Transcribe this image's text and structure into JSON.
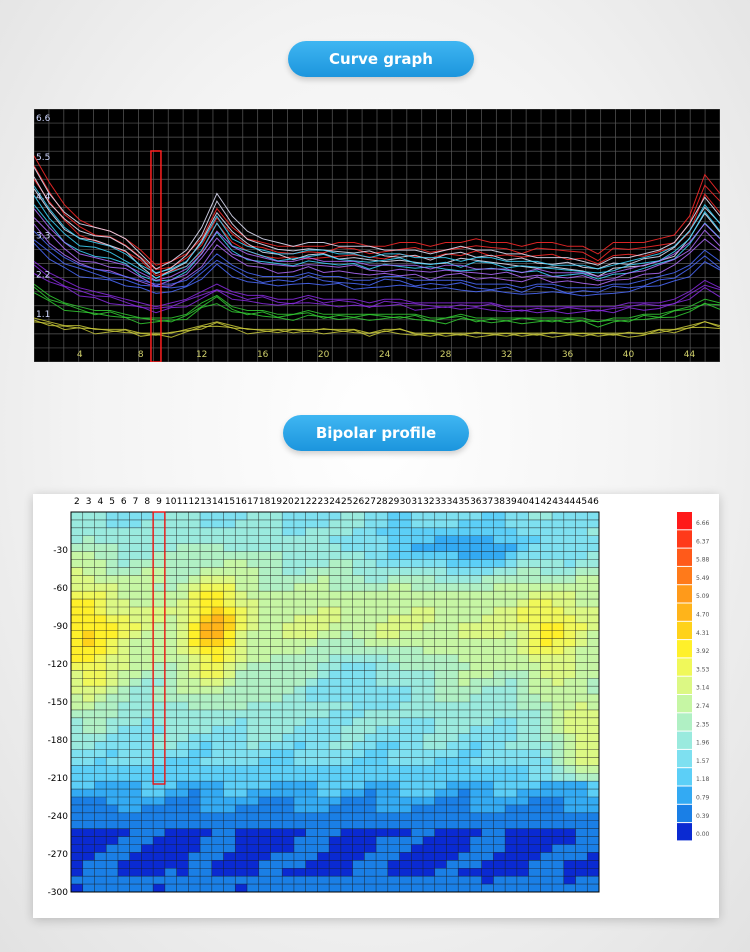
{
  "sections": {
    "curve_title": "Curve graph",
    "profile_title": "Bipolar profile"
  },
  "chart_data": [
    {
      "type": "line",
      "y_ticks": [
        "6.6",
        "5.5",
        "4.4",
        "3.3",
        "2.2",
        "1.1"
      ],
      "x_ticks": [
        "4",
        "8",
        "12",
        "16",
        "20",
        "24",
        "28",
        "32",
        "36",
        "40",
        "44"
      ],
      "xlim": [
        1,
        46
      ],
      "ylim": [
        0,
        6.6
      ],
      "grid": true,
      "highlight_x": 9,
      "x": [
        1,
        2,
        3,
        4,
        5,
        6,
        7,
        8,
        9,
        10,
        11,
        12,
        13,
        14,
        15,
        16,
        17,
        18,
        19,
        20,
        21,
        22,
        23,
        24,
        25,
        26,
        27,
        28,
        29,
        30,
        31,
        32,
        33,
        34,
        35,
        36,
        37,
        38,
        39,
        40,
        41,
        42,
        43,
        44,
        45,
        46
      ],
      "series": [
        {
          "color": "#ff2a2a",
          "values": [
            5.2,
            4.5,
            3.9,
            3.5,
            3.3,
            3.2,
            3.0,
            2.7,
            2.3,
            2.4,
            2.6,
            3.0,
            3.8,
            3.3,
            3.0,
            2.9,
            2.8,
            2.8,
            2.8,
            2.8,
            2.9,
            2.9,
            2.8,
            2.8,
            2.9,
            2.9,
            2.8,
            2.9,
            2.9,
            3.0,
            2.9,
            2.9,
            2.8,
            2.9,
            2.9,
            2.8,
            2.8,
            2.6,
            2.9,
            2.9,
            2.9,
            3.0,
            3.1,
            3.6,
            4.7,
            4.2
          ]
        },
        {
          "color": "#e8e8ff",
          "values": [
            4.9,
            4.2,
            3.7,
            3.4,
            3.3,
            3.2,
            3.0,
            2.6,
            2.2,
            2.4,
            2.7,
            3.3,
            4.2,
            3.6,
            3.2,
            3.0,
            2.9,
            2.8,
            2.9,
            2.9,
            2.8,
            2.8,
            2.8,
            2.7,
            2.7,
            2.7,
            2.6,
            2.7,
            2.8,
            2.7,
            2.7,
            2.6,
            2.6,
            2.5,
            2.5,
            2.5,
            2.4,
            2.3,
            2.5,
            2.5,
            2.6,
            2.7,
            2.9,
            3.4,
            4.1,
            3.6
          ]
        },
        {
          "color": "#3dd6ff",
          "values": [
            4.4,
            3.8,
            3.3,
            3.0,
            2.9,
            2.8,
            2.6,
            2.3,
            2.1,
            2.2,
            2.4,
            2.9,
            3.6,
            3.0,
            2.8,
            2.7,
            2.6,
            2.6,
            2.7,
            2.7,
            2.6,
            2.6,
            2.5,
            2.6,
            2.6,
            2.5,
            2.5,
            2.5,
            2.4,
            2.5,
            2.5,
            2.4,
            2.4,
            2.4,
            2.3,
            2.3,
            2.3,
            2.2,
            2.3,
            2.4,
            2.5,
            2.6,
            2.8,
            3.2,
            3.9,
            3.4
          ]
        },
        {
          "color": "#b06cff",
          "values": [
            3.8,
            3.3,
            2.9,
            2.6,
            2.5,
            2.4,
            2.3,
            2.1,
            1.9,
            2.0,
            2.2,
            2.6,
            3.2,
            2.8,
            2.6,
            2.5,
            2.4,
            2.4,
            2.5,
            2.4,
            2.4,
            2.4,
            2.3,
            2.3,
            2.3,
            2.3,
            2.2,
            2.3,
            2.3,
            2.2,
            2.2,
            2.2,
            2.1,
            2.2,
            2.1,
            2.1,
            2.1,
            2.0,
            2.1,
            2.2,
            2.3,
            2.4,
            2.6,
            2.9,
            3.4,
            3.0
          ]
        },
        {
          "color": "#4b6bff",
          "values": [
            3.2,
            2.8,
            2.5,
            2.3,
            2.2,
            2.1,
            2.0,
            1.9,
            1.8,
            1.8,
            1.9,
            2.2,
            2.6,
            2.3,
            2.1,
            2.0,
            2.0,
            2.0,
            2.1,
            2.0,
            2.0,
            1.9,
            1.9,
            2.0,
            2.0,
            1.9,
            1.9,
            1.9,
            1.9,
            1.8,
            1.8,
            1.8,
            1.7,
            1.8,
            1.8,
            1.7,
            1.7,
            1.7,
            1.8,
            1.8,
            1.9,
            2.0,
            2.1,
            2.3,
            2.7,
            2.4
          ]
        },
        {
          "color": "#8a2be2",
          "values": [
            2.4,
            2.1,
            1.9,
            1.7,
            1.6,
            1.5,
            1.4,
            1.3,
            1.2,
            1.3,
            1.4,
            1.6,
            1.8,
            1.6,
            1.5,
            1.5,
            1.4,
            1.4,
            1.5,
            1.4,
            1.4,
            1.4,
            1.3,
            1.4,
            1.4,
            1.3,
            1.3,
            1.3,
            1.3,
            1.3,
            1.3,
            1.2,
            1.2,
            1.2,
            1.2,
            1.2,
            1.2,
            1.2,
            1.2,
            1.3,
            1.3,
            1.3,
            1.4,
            1.6,
            1.9,
            1.7
          ]
        },
        {
          "color": "#33cc33",
          "values": [
            1.8,
            1.5,
            1.3,
            1.2,
            1.1,
            1.1,
            1.0,
            0.9,
            0.9,
            0.9,
            1.0,
            1.3,
            1.5,
            1.2,
            1.1,
            1.1,
            1.0,
            1.0,
            1.1,
            1.0,
            1.0,
            1.0,
            1.0,
            1.0,
            1.0,
            1.0,
            0.9,
            0.9,
            1.0,
            0.9,
            0.9,
            0.9,
            0.9,
            0.9,
            0.9,
            0.9,
            0.9,
            0.8,
            0.9,
            0.9,
            1.0,
            1.0,
            1.1,
            1.2,
            1.4,
            1.3
          ]
        },
        {
          "color": "#c9c93a",
          "values": [
            0.9,
            0.8,
            0.7,
            0.7,
            0.6,
            0.6,
            0.6,
            0.5,
            0.5,
            0.5,
            0.6,
            0.7,
            0.8,
            0.7,
            0.6,
            0.6,
            0.6,
            0.6,
            0.6,
            0.6,
            0.6,
            0.6,
            0.5,
            0.6,
            0.6,
            0.5,
            0.5,
            0.5,
            0.5,
            0.5,
            0.5,
            0.5,
            0.5,
            0.5,
            0.5,
            0.5,
            0.5,
            0.5,
            0.5,
            0.5,
            0.5,
            0.6,
            0.6,
            0.7,
            0.8,
            0.7
          ]
        }
      ]
    },
    {
      "type": "heatmap",
      "x_ticks": [
        "2",
        "3",
        "4",
        "5",
        "6",
        "7",
        "8",
        "9",
        "10",
        "11",
        "12",
        "13",
        "14",
        "15",
        "16",
        "17",
        "18",
        "19",
        "20",
        "21",
        "22",
        "23",
        "24",
        "25",
        "26",
        "27",
        "28",
        "29",
        "30",
        "31",
        "32",
        "33",
        "34",
        "35",
        "36",
        "37",
        "38",
        "39",
        "40",
        "41",
        "42",
        "43",
        "44",
        "45",
        "46"
      ],
      "y_ticks": [
        "-30",
        "-60",
        "-90",
        "-120",
        "-150",
        "-180",
        "-210",
        "-240",
        "-270",
        "-300"
      ],
      "ylim": [
        -300,
        0
      ],
      "highlight_x": 9,
      "colorbar_labels": [
        "6.66",
        "6.37",
        "5.88",
        "5.49",
        "5.09",
        "4.70",
        "4.31",
        "3.92",
        "3.53",
        "3.14",
        "2.74",
        "2.35",
        "1.96",
        "1.57",
        "1.18",
        "0.79",
        "0.39",
        "0.00"
      ],
      "colorbar_colors": [
        "#ff1a1a",
        "#ff3a1a",
        "#ff5a1a",
        "#ff7a1a",
        "#ff9a1a",
        "#ffb41a",
        "#ffd21a",
        "#fff02a",
        "#f0f85a",
        "#dcf884",
        "#c6f6a4",
        "#b0f0c4",
        "#9aeade",
        "#7ee0f0",
        "#5ccff7",
        "#33aaf3",
        "#1a7fe6",
        "#0a2ad2"
      ],
      "grid": true,
      "contours": true
    }
  ]
}
